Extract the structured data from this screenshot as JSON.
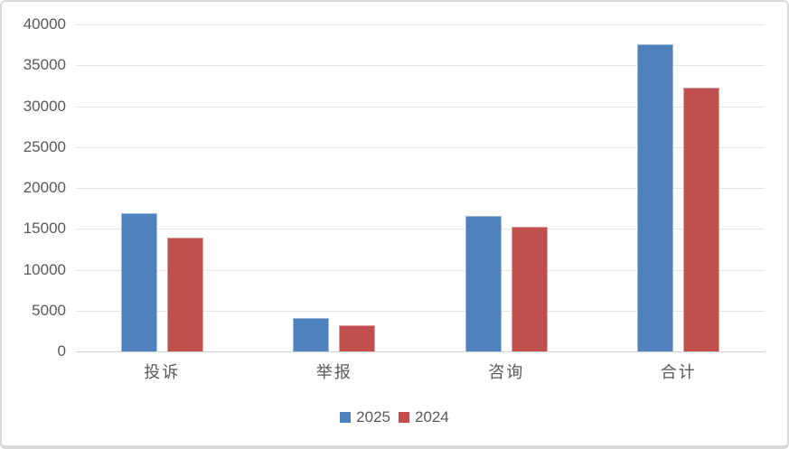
{
  "chart_data": {
    "type": "bar",
    "title": "",
    "xlabel": "",
    "ylabel": "",
    "categories": [
      "投诉",
      "举报",
      "咨询",
      "合计"
    ],
    "series": [
      {
        "name": "2025",
        "color": "#4F81BD",
        "values": [
          16900,
          4100,
          16600,
          37600
        ]
      },
      {
        "name": "2024",
        "color": "#C0504D",
        "values": [
          13900,
          3200,
          15200,
          32300
        ]
      }
    ],
    "ylim": [
      0,
      40000
    ],
    "ytick_step": 5000,
    "yticks": [
      0,
      5000,
      10000,
      15000,
      20000,
      25000,
      30000,
      35000,
      40000
    ],
    "grid": true,
    "legend": {
      "position": "bottom",
      "entries": [
        "2025",
        "2024"
      ]
    }
  },
  "style": {
    "background": "#FFFFFF",
    "border_color": "#D9D9D9",
    "gridline_color": "#E6E6E6",
    "axis_line_color": "#D0D0D0",
    "text_color": "#595959",
    "series_colors": {
      "2025": "#4F81BD",
      "2024": "#C0504D"
    }
  }
}
